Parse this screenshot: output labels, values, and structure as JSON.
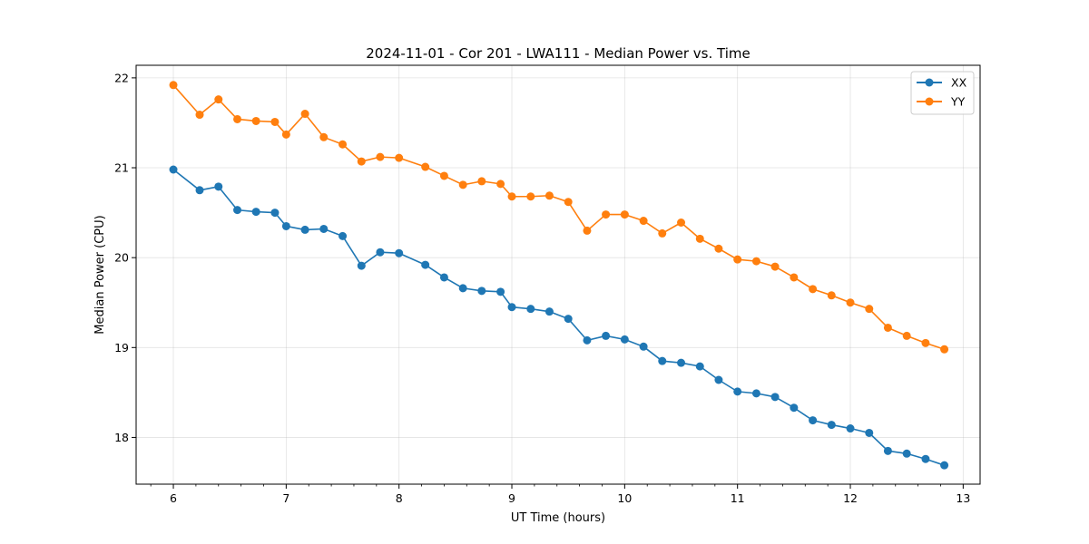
{
  "chart_data": {
    "type": "line",
    "title": "2024-11-01 - Cor 201 - LWA111 - Median Power vs. Time",
    "xlabel": "UT Time (hours)",
    "ylabel": "Median Power (CPU)",
    "xlim": [
      5.67,
      13.15
    ],
    "ylim": [
      17.48,
      22.14
    ],
    "xticks": [
      6,
      7,
      8,
      9,
      10,
      11,
      12,
      13
    ],
    "yticks": [
      18,
      19,
      20,
      21,
      22
    ],
    "grid": true,
    "legend_position": "top-right",
    "x": [
      6.0,
      6.233,
      6.4,
      6.567,
      6.733,
      6.9,
      7.0,
      7.167,
      7.333,
      7.5,
      7.667,
      7.833,
      8.0,
      8.233,
      8.4,
      8.567,
      8.733,
      8.9,
      9.0,
      9.167,
      9.333,
      9.5,
      9.667,
      9.833,
      10.0,
      10.167,
      10.333,
      10.5,
      10.667,
      10.833,
      11.0,
      11.167,
      11.333,
      11.5,
      11.667,
      11.833,
      12.0,
      12.167,
      12.333,
      12.5,
      12.667,
      12.833
    ],
    "series": [
      {
        "name": "XX",
        "color": "#1f77b4",
        "values": [
          20.98,
          20.75,
          20.79,
          20.53,
          20.51,
          20.5,
          20.35,
          20.31,
          20.32,
          20.24,
          19.91,
          20.06,
          20.05,
          19.92,
          19.78,
          19.66,
          19.63,
          19.62,
          19.45,
          19.43,
          19.4,
          19.32,
          19.08,
          19.13,
          19.09,
          19.01,
          18.85,
          18.83,
          18.79,
          18.64,
          18.51,
          18.49,
          18.45,
          18.33,
          18.19,
          18.14,
          18.1,
          18.05,
          17.85,
          17.82,
          17.76,
          17.69
        ]
      },
      {
        "name": "YY",
        "color": "#ff7f0e",
        "values": [
          21.92,
          21.59,
          21.76,
          21.54,
          21.52,
          21.51,
          21.37,
          21.6,
          21.34,
          21.26,
          21.07,
          21.12,
          21.11,
          21.01,
          20.91,
          20.81,
          20.85,
          20.82,
          20.68,
          20.68,
          20.69,
          20.62,
          20.3,
          20.48,
          20.48,
          20.41,
          20.27,
          20.39,
          20.21,
          20.1,
          19.98,
          19.96,
          19.9,
          19.78,
          19.65,
          19.58,
          19.5,
          19.43,
          19.22,
          19.13,
          19.05,
          18.98
        ]
      }
    ]
  }
}
